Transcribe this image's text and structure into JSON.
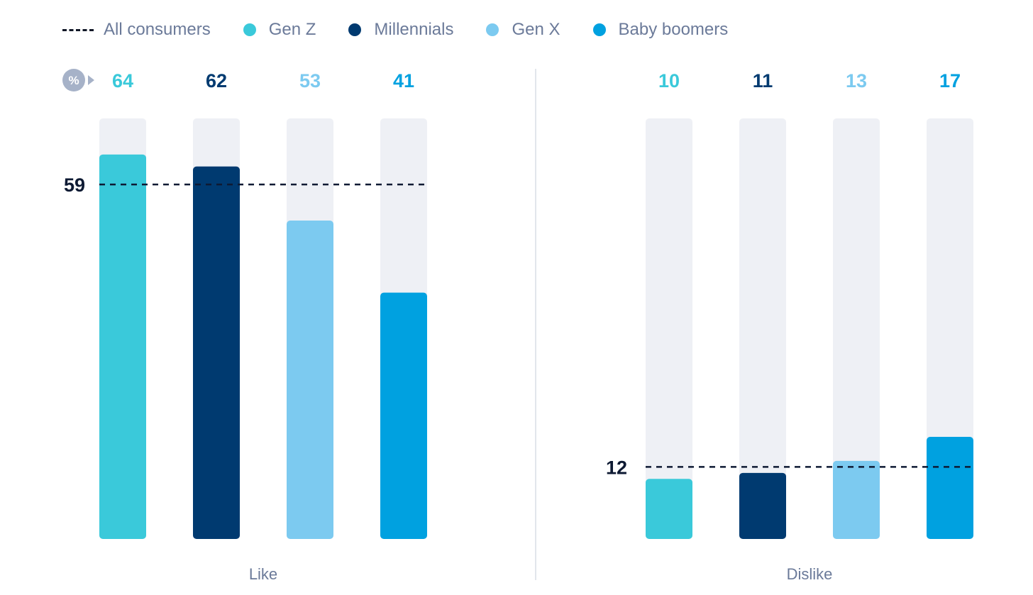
{
  "legend": {
    "all_consumers": "All consumers",
    "items": [
      {
        "label": "Gen Z",
        "color": "#3ac9da"
      },
      {
        "label": "Millennials",
        "color": "#003a70"
      },
      {
        "label": "Gen X",
        "color": "#7ccaf0"
      },
      {
        "label": "Baby boomers",
        "color": "#00a1e0"
      }
    ]
  },
  "unit_badge": "%",
  "chart_data": {
    "type": "bar",
    "ylim": [
      0,
      70
    ],
    "series_names": [
      "Gen Z",
      "Millennials",
      "Gen X",
      "Baby boomers"
    ],
    "series_colors": [
      "#3ac9da",
      "#003a70",
      "#7ccaf0",
      "#00a1e0"
    ],
    "panels": [
      {
        "label": "Like",
        "values": [
          64,
          62,
          53,
          41
        ],
        "reference": {
          "name": "All consumers",
          "value": 59
        }
      },
      {
        "label": "Dislike",
        "values": [
          10,
          11,
          13,
          17
        ],
        "reference": {
          "name": "All consumers",
          "value": 12
        }
      }
    ]
  }
}
